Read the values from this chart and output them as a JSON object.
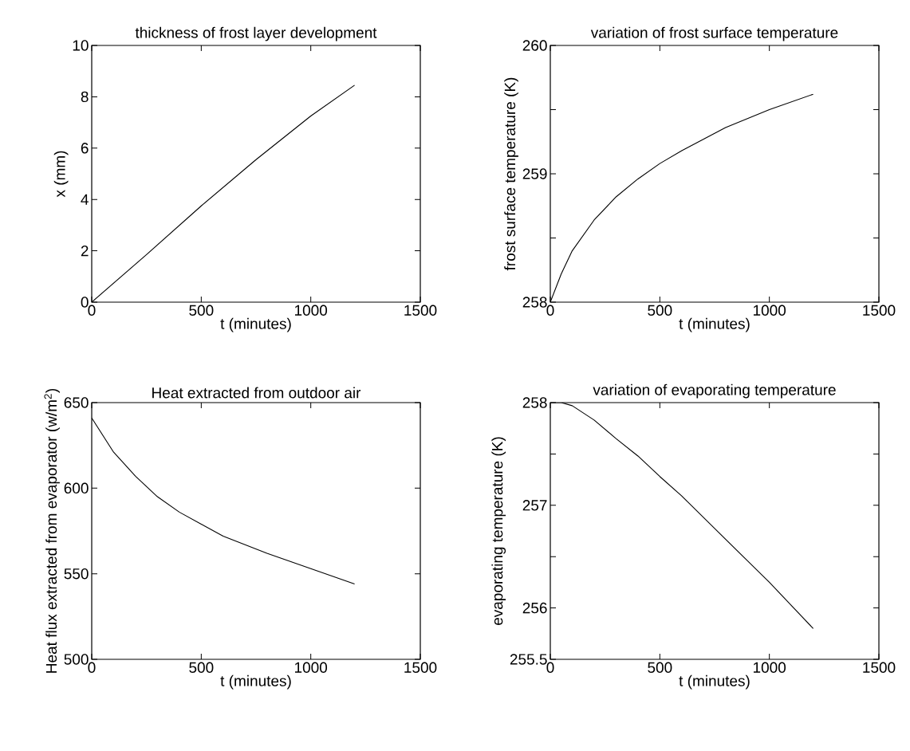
{
  "chart_data": [
    {
      "type": "line",
      "title": "thickness of frost layer development",
      "xlabel": "t (minutes)",
      "ylabel": "x (mm)",
      "color": "#000000",
      "x": [
        0,
        250,
        500,
        750,
        1000,
        1200
      ],
      "values": [
        0,
        1.85,
        3.75,
        5.55,
        7.25,
        8.45
      ],
      "xlim": [
        0,
        1500
      ],
      "xticks": [
        0,
        500,
        1000,
        1500
      ],
      "ylim": [
        0,
        10
      ],
      "yticks": [
        0,
        2,
        4,
        6,
        8,
        10
      ]
    },
    {
      "type": "line",
      "title": "variation of frost surface temperature",
      "xlabel": "t (minutes)",
      "ylabel": "frost surface temperature (K)",
      "color": "#000000",
      "x": [
        0,
        50,
        100,
        200,
        300,
        400,
        500,
        600,
        800,
        1000,
        1200
      ],
      "values": [
        258.0,
        258.22,
        258.4,
        258.64,
        258.82,
        258.96,
        259.08,
        259.18,
        259.36,
        259.5,
        259.62
      ],
      "xlim": [
        0,
        1500
      ],
      "xticks": [
        0,
        500,
        1000,
        1500
      ],
      "ylim": [
        258,
        260
      ],
      "yticks": [
        258,
        {
          "value": 258.5,
          "label": null
        },
        259,
        {
          "value": 259.5,
          "label": null
        },
        260
      ]
    },
    {
      "type": "line",
      "title": "Heat extracted from outdoor air",
      "xlabel": "t (minutes)",
      "ylabel": "Heat flux extracted from evaporator (w/m$^{2}$)",
      "color": "#000000",
      "x": [
        0,
        100,
        200,
        300,
        400,
        500,
        600,
        800,
        1000,
        1200
      ],
      "values": [
        641,
        621,
        607,
        595,
        586,
        579,
        572,
        562,
        553,
        544
      ],
      "xlim": [
        0,
        1500
      ],
      "xticks": [
        0,
        500,
        1000,
        1500
      ],
      "ylim": [
        500,
        650
      ],
      "yticks": [
        500,
        550,
        600,
        650
      ]
    },
    {
      "type": "line",
      "title": "variation of evaporating temperature",
      "xlabel": "t (minutes)",
      "ylabel": "evaporating temperature (K)",
      "color": "#000000",
      "x": [
        0,
        50,
        100,
        200,
        300,
        400,
        500,
        600,
        800,
        1000,
        1200
      ],
      "values": [
        258.0,
        258.0,
        257.97,
        257.83,
        257.65,
        257.48,
        257.28,
        257.09,
        256.67,
        256.25,
        255.8
      ],
      "xlim": [
        0,
        1500
      ],
      "xticks": [
        0,
        500,
        1000,
        1500
      ],
      "ylim": [
        255.5,
        258
      ],
      "yticks": [
        255.5,
        256,
        {
          "value": 256.5,
          "label": null
        },
        257,
        {
          "value": 257.5,
          "label": null
        },
        258
      ]
    }
  ]
}
